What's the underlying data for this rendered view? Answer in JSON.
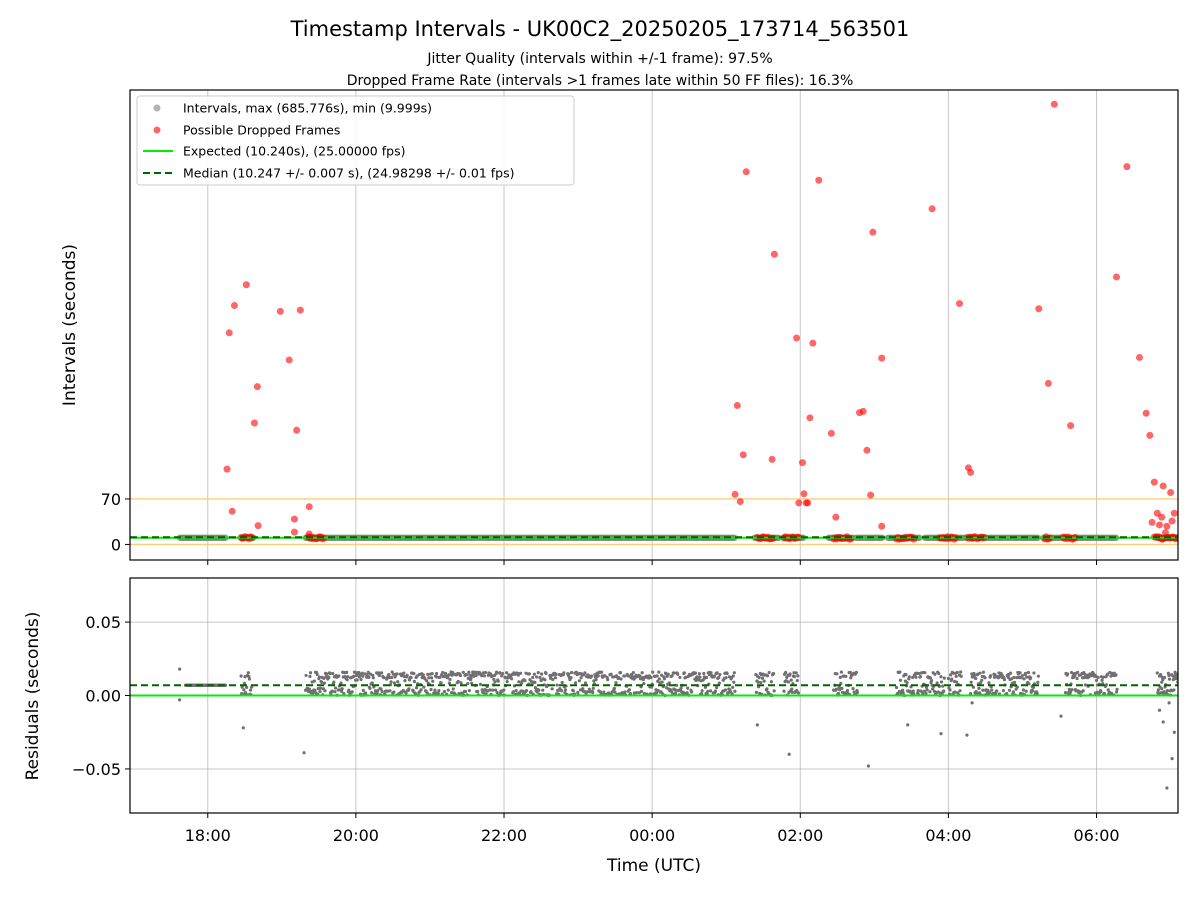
{
  "chart_data": [
    {
      "type": "scatter",
      "title": "Timestamp Intervals - UK00C2_20250205_173714_563501",
      "subtitle_1": "Jitter Quality (intervals within +/-1 frame): 97.5%",
      "subtitle_2": "Dropped Frame Rate (intervals >1 frames late within 50 FF files): 16.3%",
      "xlabel": "",
      "ylabel": "Intervals (seconds)",
      "x_axis_type": "time (hours UTC, 24h clock; values after midnight written as 24+h)",
      "xlim": [
        16.95,
        31.1
      ],
      "ylim": [
        -24,
        700
      ],
      "y_ticks": [
        0,
        70
      ],
      "x_ticks": [
        18,
        20,
        22,
        24,
        26,
        28,
        30
      ],
      "x_tick_labels_shown_on": "lower panel",
      "grid": "vertical lines at x ticks",
      "legend_position": "upper-left",
      "reference_lines": [
        {
          "y": 70,
          "color": "#FFC966",
          "label": ""
        },
        {
          "y": 0,
          "color": "#FFC966",
          "label": ""
        }
      ],
      "series": [
        {
          "name": "Intervals, max (685.776s), min (9.999s)",
          "kind": "scatter",
          "color": "#808080",
          "alpha": 0.55,
          "y_value": 10.247,
          "segments": [
            [
              17.62,
              18.25
            ],
            [
              18.45,
              18.62
            ],
            [
              19.32,
              25.12
            ],
            [
              25.38,
              25.72
            ],
            [
              25.78,
              26.05
            ],
            [
              26.38,
              26.72
            ],
            [
              26.75,
              27.12
            ],
            [
              27.18,
              27.62
            ],
            [
              27.68,
              28.22
            ],
            [
              28.3,
              29.22
            ],
            [
              29.28,
              29.58
            ],
            [
              29.68,
              30.28
            ],
            [
              30.82,
              31.1
            ]
          ]
        },
        {
          "name": "Possible Dropped Frames",
          "kind": "scatter",
          "color": "#FF0000",
          "alpha": 0.55,
          "points": [
            [
              18.26,
              116
            ],
            [
              18.29,
              326
            ],
            [
              18.33,
              51
            ],
            [
              18.36,
              368
            ],
            [
              18.52,
              400
            ],
            [
              18.63,
              187
            ],
            [
              18.68,
              29
            ],
            [
              18.67,
              243
            ],
            [
              18.98,
              359
            ],
            [
              19.1,
              284
            ],
            [
              19.17,
              39
            ],
            [
              19.17,
              19
            ],
            [
              19.2,
              176
            ],
            [
              19.25,
              361
            ],
            [
              19.37,
              58
            ],
            [
              19.37,
              16
            ],
            [
              25.12,
              77
            ],
            [
              25.15,
              214
            ],
            [
              25.19,
              66
            ],
            [
              25.23,
              138
            ],
            [
              25.27,
              574
            ],
            [
              25.62,
              131
            ],
            [
              25.65,
              447
            ],
            [
              25.95,
              318
            ],
            [
              25.98,
              64
            ],
            [
              26.03,
              126
            ],
            [
              26.05,
              78
            ],
            [
              26.08,
              64
            ],
            [
              26.1,
              64
            ],
            [
              26.13,
              195
            ],
            [
              26.17,
              310
            ],
            [
              26.25,
              561
            ],
            [
              26.42,
              171
            ],
            [
              26.48,
              42
            ],
            [
              26.8,
              203
            ],
            [
              26.85,
              205
            ],
            [
              26.9,
              145
            ],
            [
              26.95,
              76
            ],
            [
              26.98,
              481
            ],
            [
              27.1,
              28
            ],
            [
              27.1,
              287
            ],
            [
              27.78,
              517
            ],
            [
              28.15,
              371
            ],
            [
              28.27,
              118
            ],
            [
              28.3,
              111
            ],
            [
              29.22,
              363
            ],
            [
              29.35,
              248
            ],
            [
              29.43,
              678
            ],
            [
              29.65,
              183
            ],
            [
              30.27,
              412
            ],
            [
              30.41,
              582
            ],
            [
              30.58,
              288
            ],
            [
              30.67,
              202
            ],
            [
              30.72,
              168
            ],
            [
              30.75,
              34
            ],
            [
              30.78,
              96
            ],
            [
              30.82,
              48
            ],
            [
              30.85,
              30
            ],
            [
              30.9,
              90
            ],
            [
              30.95,
              28
            ],
            [
              31.0,
              80
            ],
            [
              31.02,
              36
            ],
            [
              31.05,
              48
            ],
            [
              30.88,
              42
            ],
            [
              30.93,
              18
            ]
          ],
          "clusters_at_y_10": [
            [
              18.45,
              18.6
            ],
            [
              19.35,
              19.58
            ],
            [
              25.42,
              25.65
            ],
            [
              25.78,
              25.98
            ],
            [
              26.45,
              26.7
            ],
            [
              27.3,
              27.55
            ],
            [
              27.88,
              28.1
            ],
            [
              28.25,
              28.5
            ],
            [
              29.3,
              29.38
            ],
            [
              29.55,
              29.72
            ],
            [
              30.78,
              31.1
            ]
          ]
        },
        {
          "name": "Expected (10.240s), (25.00000 fps)",
          "kind": "line",
          "color": "#00EE00",
          "y": 10.24
        },
        {
          "name": "Median (10.247 +/- 0.007 s), (24.98298 +/- 0.01 fps)",
          "kind": "dashed-line",
          "color": "#006400",
          "y": 10.247
        }
      ]
    },
    {
      "type": "scatter",
      "title": "",
      "xlabel": "Time (UTC)",
      "ylabel": "Residuals (seconds)",
      "xlim": [
        16.95,
        31.1
      ],
      "ylim": [
        -0.08,
        0.08
      ],
      "y_ticks": [
        -0.05,
        0.0,
        0.05
      ],
      "y_tick_labels": [
        "−0.05",
        "0.00",
        "0.05"
      ],
      "x_ticks": [
        18,
        20,
        22,
        24,
        26,
        28,
        30
      ],
      "x_tick_labels": [
        "18:00",
        "20:00",
        "22:00",
        "00:00",
        "02:00",
        "04:00",
        "06:00"
      ],
      "grid": "on",
      "reference_lines": [
        {
          "y": 0.0,
          "color": "#00EE00",
          "style": "solid"
        },
        {
          "y": 0.007,
          "color": "#006400",
          "style": "dashed"
        }
      ],
      "series": [
        {
          "name": "",
          "kind": "scatter",
          "color": "#707070",
          "noisy_band": [
            0.0,
            0.016
          ],
          "flat_segments": [
            [
              17.7,
              18.25,
              0.007
            ]
          ],
          "dense_segments": [
            [
              18.45,
              18.6
            ],
            [
              19.32,
              25.12
            ],
            [
              25.4,
              25.65
            ],
            [
              25.78,
              25.98
            ],
            [
              26.45,
              26.78
            ],
            [
              27.3,
              27.95
            ],
            [
              28.0,
              28.18
            ],
            [
              28.3,
              29.22
            ],
            [
              29.58,
              30.28
            ],
            [
              30.82,
              31.1
            ]
          ],
          "outliers": [
            [
              17.62,
              0.018
            ],
            [
              17.62,
              -0.003
            ],
            [
              18.48,
              -0.022
            ],
            [
              19.3,
              -0.039
            ],
            [
              25.42,
              -0.02
            ],
            [
              25.85,
              -0.04
            ],
            [
              26.92,
              -0.048
            ],
            [
              27.45,
              -0.02
            ],
            [
              27.9,
              -0.026
            ],
            [
              28.25,
              -0.027
            ],
            [
              28.32,
              -0.005
            ],
            [
              29.52,
              -0.014
            ],
            [
              30.9,
              -0.018
            ],
            [
              30.95,
              -0.063
            ],
            [
              31.02,
              -0.043
            ],
            [
              31.05,
              -0.025
            ],
            [
              30.85,
              -0.01
            ],
            [
              30.98,
              -0.005
            ],
            [
              30.88,
              0.009
            ]
          ]
        }
      ]
    }
  ]
}
